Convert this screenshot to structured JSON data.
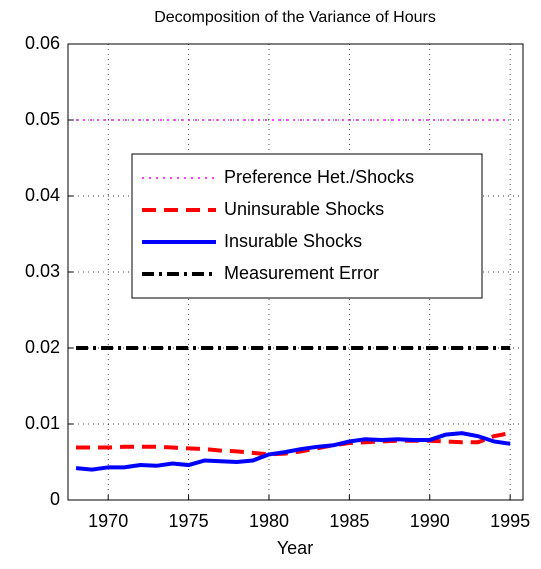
{
  "chart_data": {
    "type": "line",
    "title": "Decomposition of the Variance of Hours",
    "x_label": "Year",
    "x": [
      1968,
      1969,
      1970,
      1971,
      1972,
      1973,
      1974,
      1975,
      1976,
      1977,
      1978,
      1979,
      1980,
      1981,
      1982,
      1983,
      1984,
      1985,
      1986,
      1987,
      1988,
      1989,
      1990,
      1991,
      1992,
      1993,
      1994,
      1995
    ],
    "series": [
      {
        "name": "Preference Het./Shocks",
        "color": "#ff00ff",
        "linestyle": "dotted",
        "values": [
          0.05,
          0.05,
          0.05,
          0.05,
          0.05,
          0.05,
          0.05,
          0.05,
          0.05,
          0.05,
          0.05,
          0.05,
          0.05,
          0.05,
          0.05,
          0.05,
          0.05,
          0.05,
          0.05,
          0.05,
          0.05,
          0.05,
          0.05,
          0.05,
          0.05,
          0.05,
          0.05,
          0.05
        ]
      },
      {
        "name": "Uninsurable Shocks",
        "color": "#ff0000",
        "linestyle": "dashed",
        "values": [
          0.0069,
          0.0069,
          0.0069,
          0.007,
          0.007,
          0.007,
          0.0069,
          0.0068,
          0.0067,
          0.0065,
          0.0064,
          0.0062,
          0.006,
          0.0061,
          0.0064,
          0.0068,
          0.0072,
          0.0075,
          0.0076,
          0.0077,
          0.0078,
          0.0078,
          0.0078,
          0.0077,
          0.0076,
          0.0076,
          0.0084,
          0.0088
        ]
      },
      {
        "name": "Insurable Shocks",
        "color": "#0000ff",
        "linestyle": "solid",
        "values": [
          0.0042,
          0.004,
          0.0043,
          0.0043,
          0.0046,
          0.0045,
          0.0048,
          0.0046,
          0.0052,
          0.0051,
          0.005,
          0.0052,
          0.006,
          0.0063,
          0.0067,
          0.007,
          0.0072,
          0.0077,
          0.008,
          0.0079,
          0.008,
          0.0079,
          0.0079,
          0.0086,
          0.0088,
          0.0084,
          0.0077,
          0.0074
        ]
      },
      {
        "name": "Measurement Error",
        "color": "#000000",
        "linestyle": "dashdot",
        "values": [
          0.02,
          0.02,
          0.02,
          0.02,
          0.02,
          0.02,
          0.02,
          0.02,
          0.02,
          0.02,
          0.02,
          0.02,
          0.02,
          0.02,
          0.02,
          0.02,
          0.02,
          0.02,
          0.02,
          0.02,
          0.02,
          0.02,
          0.02,
          0.02,
          0.02,
          0.02,
          0.02,
          0.02
        ]
      }
    ],
    "xlim": [
      1967.5,
      1995.8
    ],
    "xticks": [
      1970,
      1975,
      1980,
      1985,
      1990,
      1995
    ],
    "ylim": [
      0,
      0.06
    ],
    "yticks": [
      0,
      0.01,
      0.02,
      0.03,
      0.04,
      0.05,
      0.06
    ],
    "grid": true
  }
}
